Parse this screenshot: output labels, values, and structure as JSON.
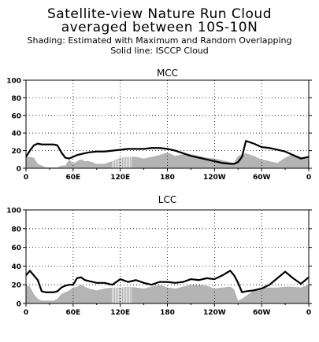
{
  "figure": {
    "title_line1": "Satellite-view Nature Run  Cloud",
    "title_line2": "averaged between 10S-10N",
    "subtitle_line1": "Shading: Estimated with Maximum and Random Overlapping",
    "subtitle_line2": "Solid line: ISCCP  Cloud"
  },
  "chart_data": [
    {
      "type": "line",
      "panel_title": "MCC",
      "x": [
        0,
        5,
        10,
        15,
        20,
        25,
        30,
        35,
        40,
        45,
        50,
        55,
        60,
        65,
        70,
        75,
        80,
        90,
        100,
        110,
        120,
        130,
        140,
        150,
        160,
        170,
        180,
        190,
        200,
        210,
        220,
        230,
        240,
        250,
        260,
        265,
        270,
        275,
        280,
        290,
        300,
        310,
        320,
        330,
        340,
        350,
        360
      ],
      "series": [
        {
          "style": "solid-line",
          "values": [
            13,
            20,
            26,
            28,
            27,
            27,
            27,
            27,
            26,
            18,
            12,
            11,
            13,
            15,
            16,
            17,
            18,
            19,
            19,
            20,
            21,
            22,
            22,
            22,
            23,
            23,
            22,
            20,
            17,
            14,
            12,
            10,
            8,
            6,
            5,
            5,
            7,
            13,
            31,
            28,
            24,
            23,
            21,
            19,
            15,
            11,
            13
          ]
        },
        {
          "style": "shading",
          "values": [
            13,
            13,
            12,
            5,
            3,
            1,
            1,
            1,
            1,
            3,
            3,
            10,
            5,
            8,
            10,
            8,
            8,
            5,
            5,
            8,
            12,
            13,
            13,
            11,
            13,
            15,
            18,
            14,
            16,
            16,
            14,
            12,
            11,
            9,
            7,
            6,
            14,
            16,
            17,
            14,
            10,
            8,
            6,
            12,
            16,
            13,
            12
          ]
        }
      ],
      "hatching_between_x": [
        110,
        135
      ],
      "xticks": [
        "0",
        "60E",
        "120E",
        "180",
        "120W",
        "60W",
        "0"
      ],
      "ylim": [
        0,
        100
      ],
      "yticks": [
        "0",
        "20",
        "40",
        "60",
        "80",
        "100"
      ],
      "grid": "dotted"
    },
    {
      "type": "line",
      "panel_title": "LCC",
      "x": [
        0,
        5,
        10,
        15,
        20,
        25,
        30,
        35,
        40,
        45,
        50,
        55,
        60,
        65,
        70,
        75,
        80,
        90,
        100,
        110,
        120,
        130,
        140,
        150,
        160,
        170,
        180,
        190,
        200,
        210,
        220,
        230,
        240,
        250,
        260,
        265,
        270,
        275,
        280,
        290,
        300,
        310,
        320,
        330,
        340,
        350,
        360
      ],
      "series": [
        {
          "style": "solid-line",
          "values": [
            30,
            35,
            30,
            25,
            13,
            12,
            12,
            12,
            13,
            17,
            19,
            20,
            20,
            27,
            28,
            25,
            24,
            22,
            22,
            20,
            26,
            23,
            25,
            22,
            20,
            23,
            23,
            22,
            23,
            26,
            25,
            27,
            26,
            30,
            35,
            30,
            22,
            12,
            13,
            14,
            16,
            20,
            27,
            34,
            27,
            21,
            28
          ]
        },
        {
          "style": "shading",
          "values": [
            20,
            18,
            10,
            5,
            3,
            3,
            3,
            3,
            5,
            10,
            12,
            14,
            17,
            18,
            20,
            18,
            16,
            14,
            16,
            17,
            17,
            18,
            17,
            16,
            18,
            20,
            17,
            16,
            18,
            20,
            20,
            19,
            16,
            17,
            18,
            15,
            3,
            5,
            8,
            14,
            17,
            17,
            17,
            18,
            18,
            17,
            20
          ]
        }
      ],
      "hatching_between_x": [
        110,
        135
      ],
      "xticks": [
        "0",
        "60E",
        "120E",
        "180",
        "120W",
        "60W",
        "0"
      ],
      "ylim": [
        0,
        100
      ],
      "yticks": [
        "0",
        "20",
        "40",
        "60",
        "80",
        "100"
      ],
      "grid": "dotted"
    }
  ]
}
